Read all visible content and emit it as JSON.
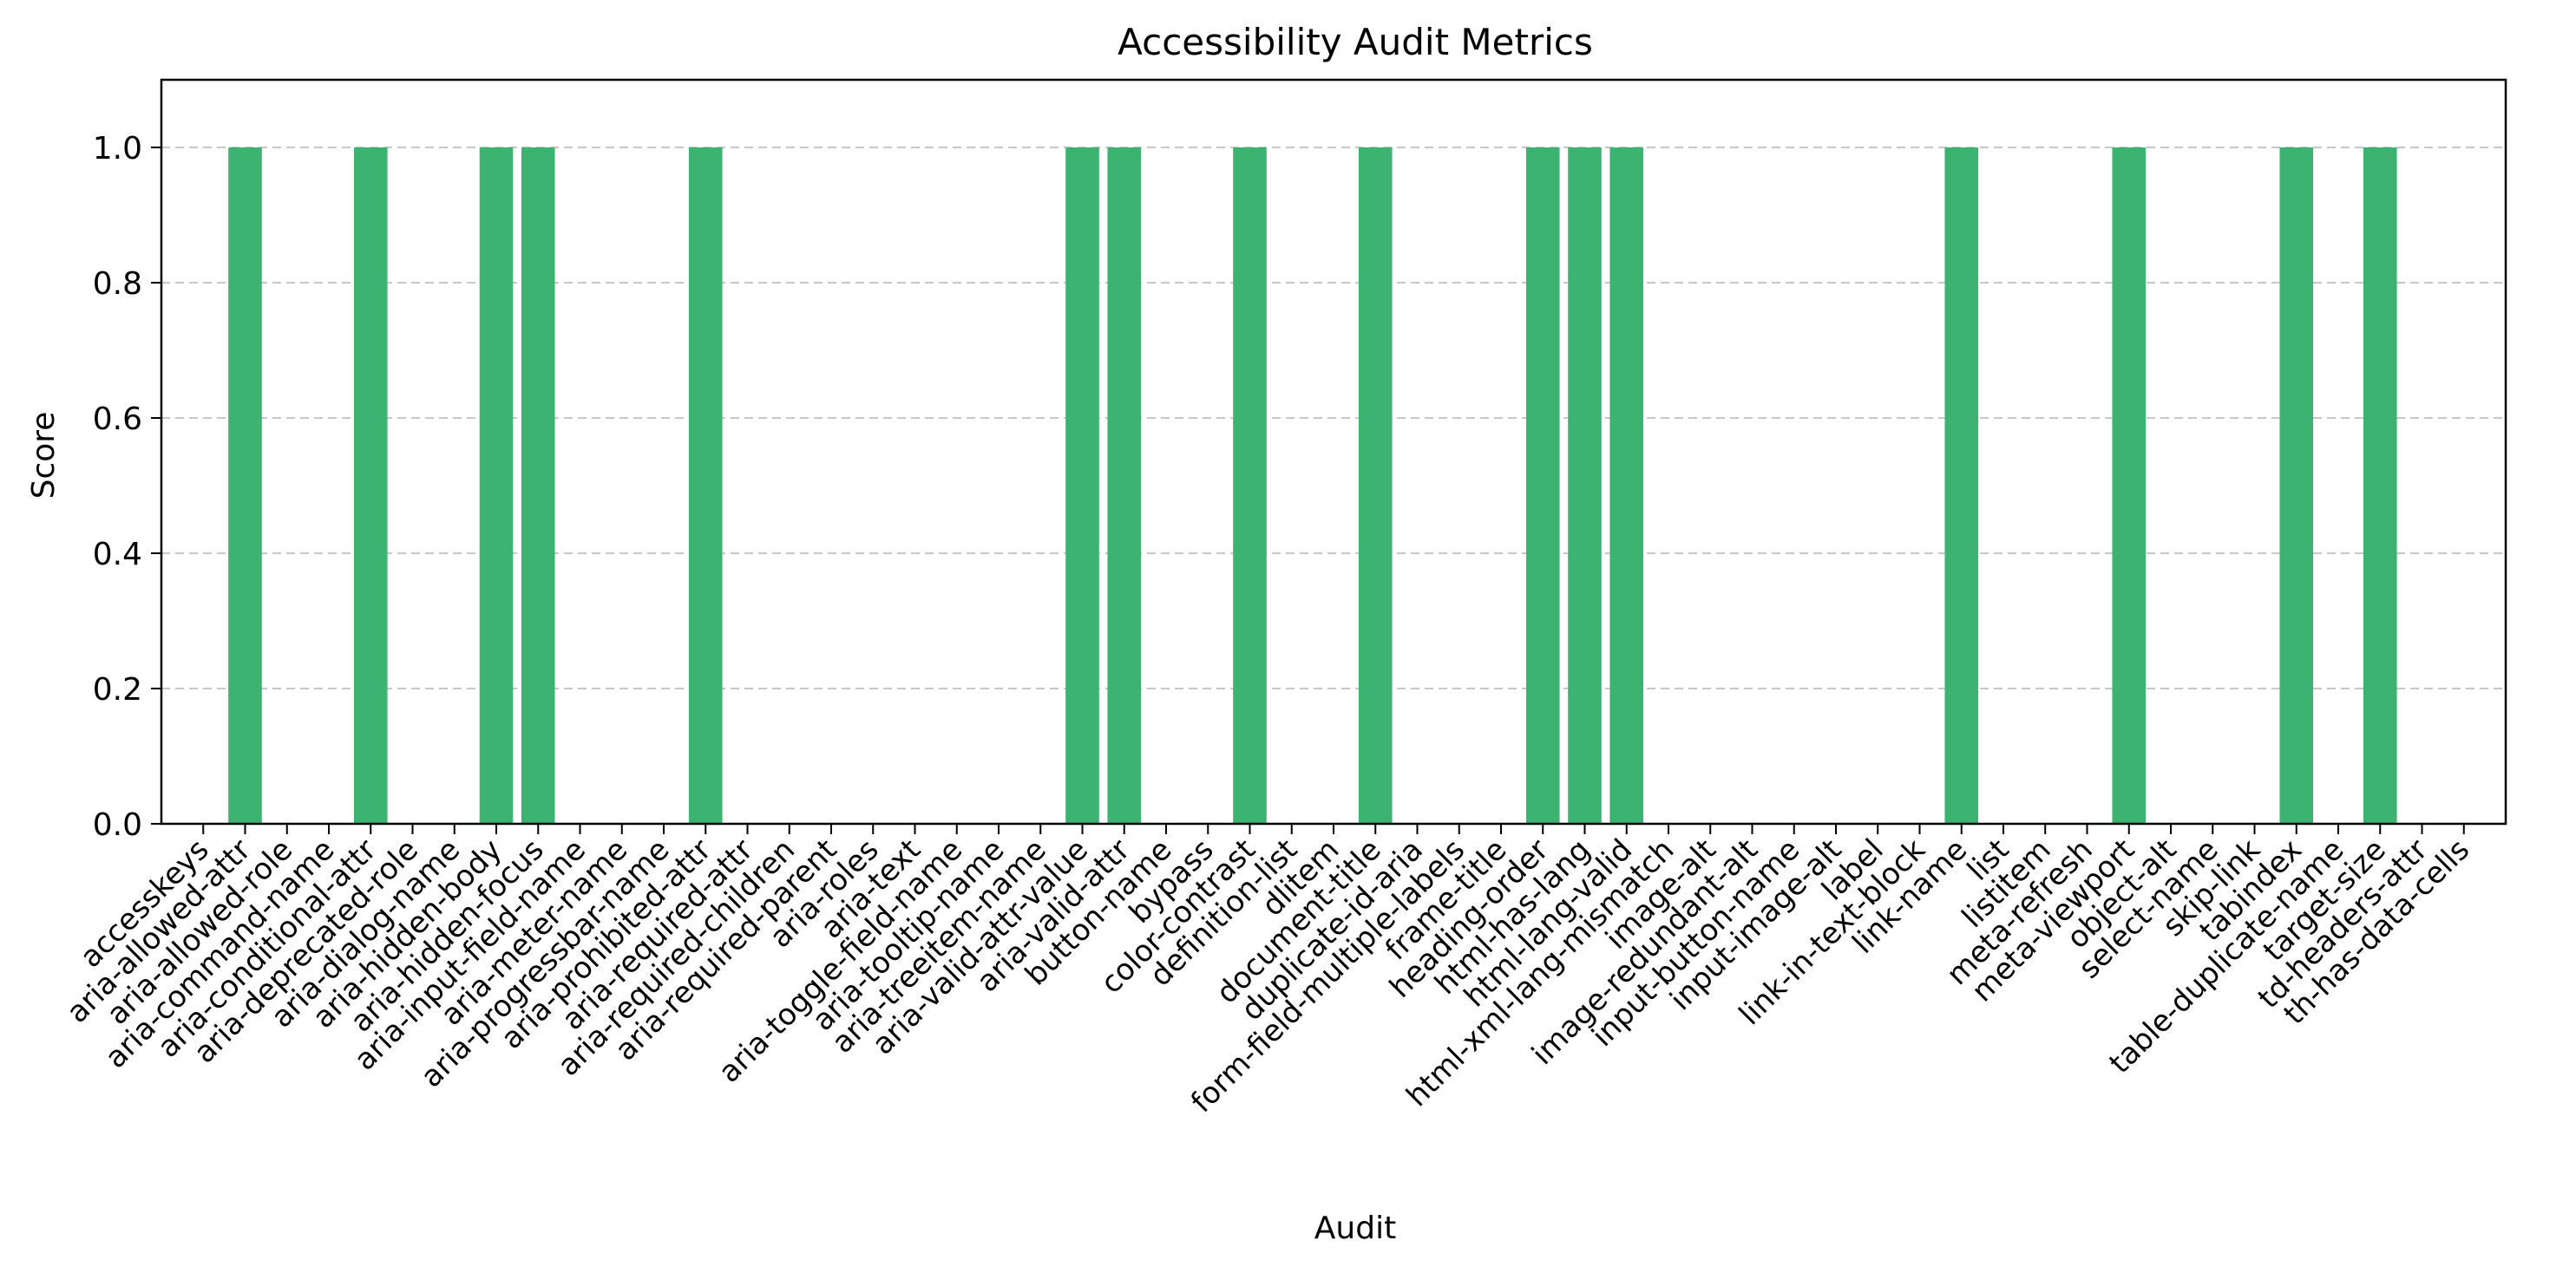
{
  "chart_data": {
    "type": "bar",
    "title": "Accessibility Audit Metrics",
    "xlabel": "Audit",
    "ylabel": "Score",
    "ylim": [
      0,
      1.1
    ],
    "yticks": [
      "0.0",
      "0.2",
      "0.4",
      "0.6",
      "0.8",
      "1.0"
    ],
    "grid": "y-dashed",
    "bar_color": "#3cb371",
    "categories": [
      "accesskeys",
      "aria-allowed-attr",
      "aria-allowed-role",
      "aria-command-name",
      "aria-conditional-attr",
      "aria-deprecated-role",
      "aria-dialog-name",
      "aria-hidden-body",
      "aria-hidden-focus",
      "aria-input-field-name",
      "aria-meter-name",
      "aria-progressbar-name",
      "aria-prohibited-attr",
      "aria-required-attr",
      "aria-required-children",
      "aria-required-parent",
      "aria-roles",
      "aria-text",
      "aria-toggle-field-name",
      "aria-tooltip-name",
      "aria-treeitem-name",
      "aria-valid-attr-value",
      "aria-valid-attr",
      "button-name",
      "bypass",
      "color-contrast",
      "definition-list",
      "dlitem",
      "document-title",
      "duplicate-id-aria",
      "form-field-multiple-labels",
      "frame-title",
      "heading-order",
      "html-has-lang",
      "html-lang-valid",
      "html-xml-lang-mismatch",
      "image-alt",
      "image-redundant-alt",
      "input-button-name",
      "input-image-alt",
      "label",
      "link-in-text-block",
      "link-name",
      "list",
      "listitem",
      "meta-refresh",
      "meta-viewport",
      "object-alt",
      "select-name",
      "skip-link",
      "tabindex",
      "table-duplicate-name",
      "target-size",
      "td-headers-attr",
      "th-has-data-cells"
    ],
    "values": [
      0,
      1,
      0,
      0,
      1,
      0,
      0,
      1,
      1,
      0,
      0,
      0,
      1,
      0,
      0,
      0,
      0,
      0,
      0,
      0,
      0,
      1,
      1,
      0,
      0,
      1,
      0,
      0,
      1,
      0,
      0,
      0,
      1,
      1,
      1,
      0,
      0,
      0,
      0,
      0,
      0,
      0,
      1,
      0,
      0,
      0,
      1,
      0,
      0,
      0,
      1,
      0,
      1,
      0,
      0
    ]
  }
}
